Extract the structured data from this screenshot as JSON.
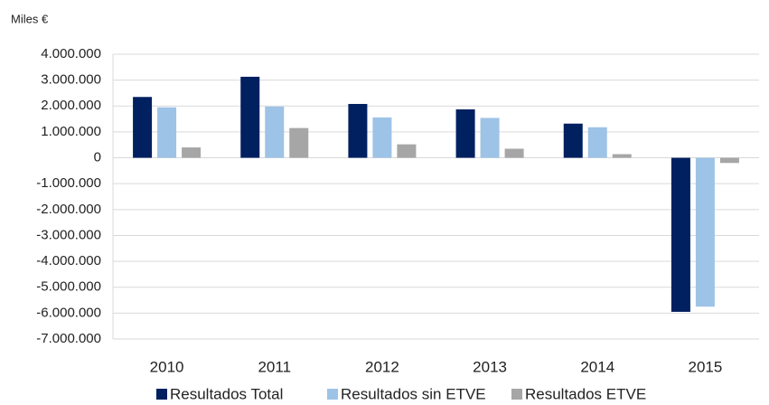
{
  "chart_data": {
    "type": "bar",
    "ylabel": "Miles €",
    "categories": [
      "2010",
      "2011",
      "2012",
      "2013",
      "2014",
      "2015"
    ],
    "series": [
      {
        "name": "Resultados Total",
        "color": "#002060",
        "values": [
          2350000,
          3130000,
          2080000,
          1870000,
          1320000,
          -5950000
        ]
      },
      {
        "name": "Resultados sin ETVE",
        "color": "#9dc3e6",
        "values": [
          1950000,
          1980000,
          1560000,
          1540000,
          1180000,
          -5750000
        ]
      },
      {
        "name": "Resultados ETVE",
        "color": "#a6a6a6",
        "values": [
          400000,
          1150000,
          520000,
          350000,
          140000,
          -200000
        ]
      }
    ],
    "ylim": [
      -7000000,
      4000000
    ],
    "yticks": [
      {
        "value": -7000000,
        "label": "-7.000.000"
      },
      {
        "value": -6000000,
        "label": "-6.000.000"
      },
      {
        "value": -5000000,
        "label": "-5.000.000"
      },
      {
        "value": -4000000,
        "label": "-4.000.000"
      },
      {
        "value": -3000000,
        "label": "-3.000.000"
      },
      {
        "value": -2000000,
        "label": "-2.000.000"
      },
      {
        "value": -1000000,
        "label": "-1.000.000"
      },
      0,
      {
        "value": 1000000,
        "label": "1.000.000"
      },
      {
        "value": 2000000,
        "label": "2.000.000"
      },
      {
        "value": 3000000,
        "label": "3.000.000"
      },
      {
        "value": 4000000,
        "label": "4.000.000"
      }
    ],
    "grid": true,
    "legend": "bottom"
  }
}
